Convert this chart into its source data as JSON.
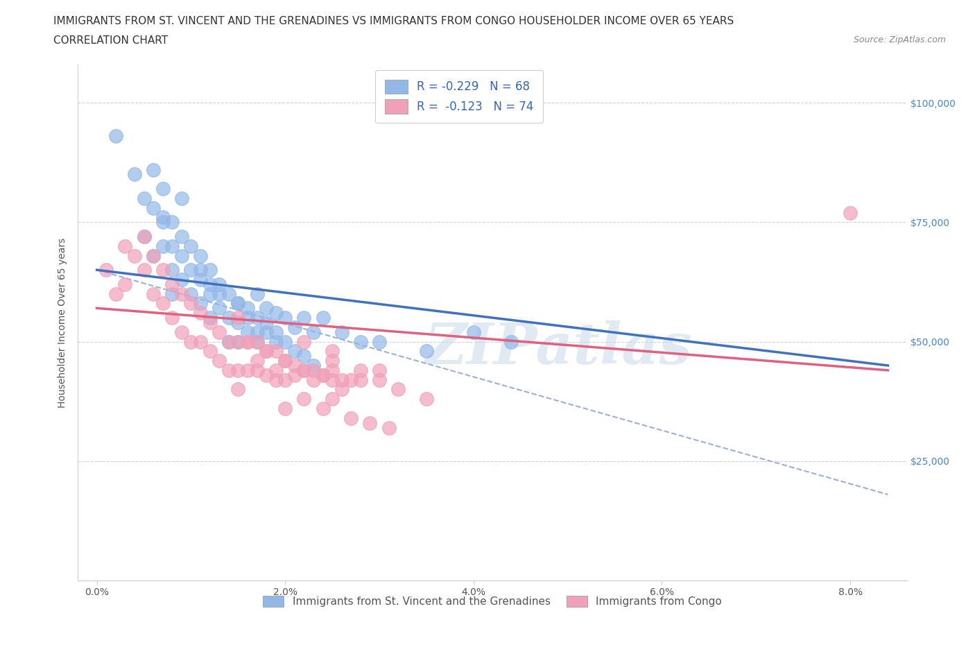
{
  "title_line1": "IMMIGRANTS FROM ST. VINCENT AND THE GRENADINES VS IMMIGRANTS FROM CONGO HOUSEHOLDER INCOME OVER 65 YEARS",
  "title_line2": "CORRELATION CHART",
  "source": "Source: ZipAtlas.com",
  "ylabel": "Householder Income Over 65 years",
  "watermark": "ZIPatlas",
  "legend_label1": "R = -0.229   N = 68",
  "legend_label2": "R =  -0.123   N = 74",
  "series1_name": "Immigrants from St. Vincent and the Grenadines",
  "series2_name": "Immigrants from Congo",
  "series1_color": "#92b8e8",
  "series2_color": "#f0a0b8",
  "series1_line_color": "#4070c0",
  "series2_line_color": "#e06080",
  "dashed_line_color": "#9ab0d8",
  "xlim": [
    -0.002,
    0.086
  ],
  "ylim": [
    0,
    108000
  ],
  "xtick_labels": [
    "0.0%",
    "2.0%",
    "4.0%",
    "6.0%",
    "8.0%"
  ],
  "xtick_values": [
    0.0,
    0.02,
    0.04,
    0.06,
    0.08
  ],
  "ytick_labels": [
    "$25,000",
    "$50,000",
    "$75,000",
    "$100,000"
  ],
  "ytick_values": [
    25000,
    50000,
    75000,
    100000
  ],
  "background_color": "#ffffff",
  "grid_color": "#d0d0e0",
  "title_fontsize": 11,
  "axis_label_fontsize": 10,
  "tick_fontsize": 10,
  "series1_scatter_x": [
    0.002,
    0.004,
    0.005,
    0.005,
    0.006,
    0.006,
    0.007,
    0.007,
    0.007,
    0.008,
    0.008,
    0.008,
    0.009,
    0.009,
    0.009,
    0.01,
    0.01,
    0.011,
    0.011,
    0.011,
    0.012,
    0.012,
    0.012,
    0.013,
    0.013,
    0.014,
    0.014,
    0.014,
    0.015,
    0.015,
    0.015,
    0.016,
    0.016,
    0.017,
    0.017,
    0.017,
    0.018,
    0.018,
    0.019,
    0.019,
    0.02,
    0.021,
    0.022,
    0.023,
    0.024,
    0.026,
    0.028,
    0.03,
    0.035,
    0.04,
    0.044,
    0.008,
    0.006,
    0.007,
    0.01,
    0.011,
    0.012,
    0.013,
    0.015,
    0.016,
    0.017,
    0.02,
    0.021,
    0.022,
    0.023,
    0.018,
    0.019,
    0.009
  ],
  "series1_scatter_y": [
    93000,
    85000,
    80000,
    72000,
    86000,
    78000,
    82000,
    76000,
    70000,
    75000,
    70000,
    65000,
    72000,
    68000,
    63000,
    70000,
    65000,
    68000,
    63000,
    58000,
    65000,
    60000,
    55000,
    62000,
    57000,
    60000,
    55000,
    50000,
    58000,
    54000,
    50000,
    57000,
    52000,
    60000,
    55000,
    50000,
    57000,
    52000,
    56000,
    52000,
    55000,
    53000,
    55000,
    52000,
    55000,
    52000,
    50000,
    50000,
    48000,
    52000,
    50000,
    60000,
    68000,
    75000,
    60000,
    65000,
    62000,
    60000,
    58000,
    55000,
    52000,
    50000,
    48000,
    47000,
    45000,
    54000,
    50000,
    80000
  ],
  "series2_scatter_x": [
    0.001,
    0.002,
    0.003,
    0.003,
    0.004,
    0.005,
    0.005,
    0.006,
    0.006,
    0.007,
    0.007,
    0.008,
    0.008,
    0.009,
    0.009,
    0.01,
    0.01,
    0.011,
    0.011,
    0.012,
    0.012,
    0.013,
    0.013,
    0.014,
    0.014,
    0.015,
    0.015,
    0.016,
    0.016,
    0.017,
    0.017,
    0.018,
    0.018,
    0.019,
    0.019,
    0.02,
    0.02,
    0.021,
    0.022,
    0.023,
    0.024,
    0.025,
    0.026,
    0.027,
    0.028,
    0.015,
    0.016,
    0.017,
    0.018,
    0.019,
    0.02,
    0.021,
    0.022,
    0.023,
    0.024,
    0.025,
    0.026,
    0.025,
    0.03,
    0.022,
    0.025,
    0.028,
    0.03,
    0.032,
    0.035,
    0.025,
    0.015,
    0.02,
    0.022,
    0.024,
    0.027,
    0.029,
    0.031,
    0.08
  ],
  "series2_scatter_y": [
    65000,
    60000,
    70000,
    62000,
    68000,
    72000,
    65000,
    68000,
    60000,
    65000,
    58000,
    62000,
    55000,
    60000,
    52000,
    58000,
    50000,
    56000,
    50000,
    54000,
    48000,
    52000,
    46000,
    50000,
    44000,
    50000,
    44000,
    50000,
    44000,
    50000,
    44000,
    48000,
    43000,
    48000,
    42000,
    46000,
    42000,
    45000,
    44000,
    44000,
    43000,
    44000,
    42000,
    42000,
    42000,
    55000,
    50000,
    46000,
    48000,
    44000,
    46000,
    43000,
    44000,
    42000,
    43000,
    42000,
    40000,
    48000,
    44000,
    50000,
    46000,
    44000,
    42000,
    40000,
    38000,
    38000,
    40000,
    36000,
    38000,
    36000,
    34000,
    33000,
    32000,
    77000
  ],
  "series1_trend_x": [
    0.0,
    0.084
  ],
  "series1_trend_y": [
    65000,
    45000
  ],
  "series2_trend_x": [
    0.0,
    0.084
  ],
  "series2_trend_y": [
    57000,
    44000
  ],
  "dashed_trend_x": [
    0.0,
    0.084
  ],
  "dashed_trend_y": [
    65000,
    18000
  ]
}
